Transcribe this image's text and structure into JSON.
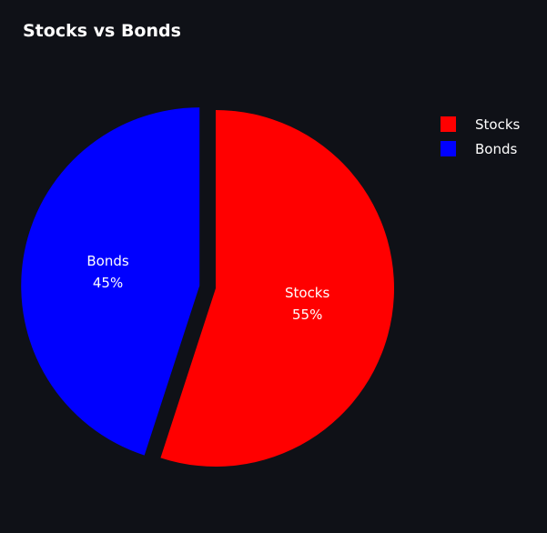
{
  "background_color": "#0f1117",
  "chart_data": {
    "type": "pie",
    "title": "Stocks vs Bonds",
    "categories": [
      "Stocks",
      "Bonds"
    ],
    "values": [
      55,
      45
    ],
    "value_labels": [
      "55%",
      "45%"
    ],
    "colors": [
      "#ff0000",
      "#0000ff"
    ],
    "exploded": [
      "Bonds"
    ],
    "start_angle_clockwise_from_top": true,
    "legend": {
      "position": "top-right",
      "entries": [
        "Stocks",
        "Bonds"
      ]
    },
    "slice_label_color": "#ffffff"
  }
}
